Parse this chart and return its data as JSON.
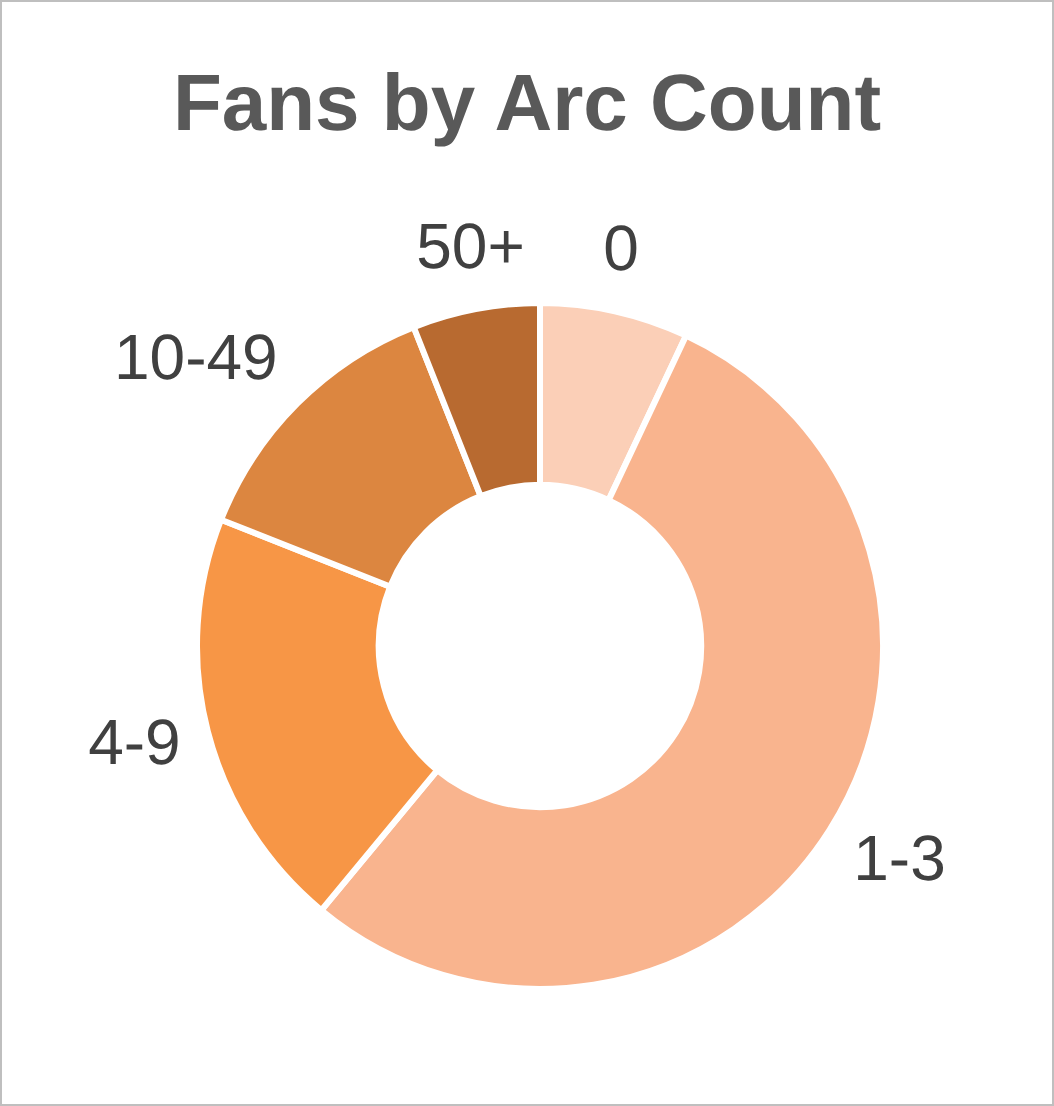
{
  "chart_data": {
    "type": "donut",
    "title": "Fans by Arc Count",
    "categories": [
      "0",
      "1-3",
      "4-9",
      "10-49",
      "50+"
    ],
    "values": [
      7,
      54,
      20,
      13,
      6
    ],
    "colors": [
      "#fbcfb7",
      "#f9b48e",
      "#f79646",
      "#dc8640",
      "#b86a30"
    ],
    "legend": false
  }
}
